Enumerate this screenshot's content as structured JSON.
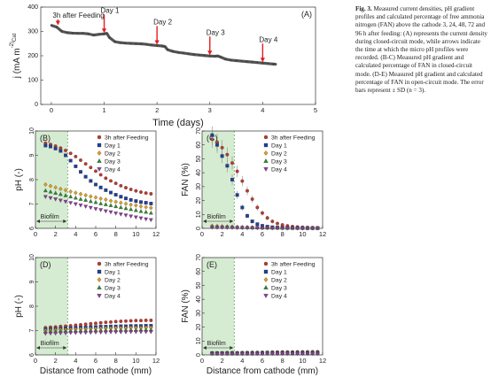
{
  "caption": {
    "label": "Fig. 3.",
    "text": "Measured current densities, pH gradient profiles and calculated percentage of free ammonia nitrogen (FAN) above the cathode 3, 24, 48, 72 and 96 h after feeding: (A) represents the current density during closed-circuit mode, while arrows indicate the time at which the micro pH profiles were recorded. (B-C) Measured pH gradient and calculated percentage of FAN in closed-circuit mode. (D-E) Measured pH gradient and calculated percentage of FAN in open-circuit mode. The error bars represent ± SD (n = 3)."
  },
  "colors": {
    "h3": "#c0392b",
    "d1": "#1f3f9b",
    "d2": "#e0a020",
    "d3": "#2e8b2e",
    "d4": "#8e3a9e",
    "arrow": "#e11d1d",
    "biofilm": "#d6ecd2",
    "trace": "#555555"
  },
  "legend": [
    "3h after Feeding",
    "Day 1",
    "Day 2",
    "Day 3",
    "Day 4"
  ],
  "biofilm_label": "Biofilm",
  "chart_data": [
    {
      "panel": "A",
      "type": "line",
      "xlabel": "Time (days)",
      "ylabel": "j (mA m Cat -2)",
      "xlim": [
        -0.2,
        5
      ],
      "ylim": [
        0,
        400
      ],
      "xticks": [
        0,
        1,
        2,
        3,
        4,
        5
      ],
      "yticks": [
        0,
        100,
        200,
        300,
        400
      ],
      "series": [
        {
          "x": [
            0,
            0.1,
            0.2,
            0.3,
            0.4,
            0.5,
            0.6,
            0.7,
            0.8,
            0.9,
            1.0,
            1.05,
            1.1,
            1.2,
            1.3,
            1.4,
            1.5,
            1.6,
            1.7,
            1.8,
            1.9,
            2.0,
            2.1,
            2.15,
            2.2,
            2.3,
            2.4,
            2.5,
            2.6,
            2.7,
            2.8,
            2.9,
            3.0,
            3.1,
            3.15,
            3.2,
            3.3,
            3.4,
            3.5,
            3.6,
            3.7,
            3.8,
            3.9,
            4.0,
            4.1,
            4.2,
            4.25
          ],
          "values": [
            325,
            318,
            300,
            295,
            293,
            292,
            292,
            290,
            285,
            288,
            290,
            292,
            275,
            258,
            254,
            252,
            251,
            250,
            249,
            247,
            244,
            242,
            240,
            238,
            225,
            218,
            214,
            211,
            208,
            205,
            203,
            201,
            199,
            198,
            199,
            195,
            186,
            182,
            180,
            178,
            176,
            174,
            172,
            170,
            168,
            166,
            165
          ]
        }
      ],
      "annotations": [
        {
          "label": "3h after Feeding",
          "x": 0.125,
          "y": 322
        },
        {
          "label": "Day 1",
          "x": 1.0,
          "y": 290
        },
        {
          "label": "Day 2",
          "x": 2.0,
          "y": 242
        },
        {
          "label": "Day 3",
          "x": 3.0,
          "y": 199
        },
        {
          "label": "Day 4",
          "x": 4.0,
          "y": 170
        }
      ]
    },
    {
      "panel": "B",
      "type": "scatter",
      "xlabel": "",
      "ylabel": "pH (-)",
      "xlim": [
        0,
        12
      ],
      "ylim": [
        6,
        10
      ],
      "xticks": [
        0,
        2,
        4,
        6,
        8,
        10,
        12
      ],
      "yticks": [
        6,
        7,
        8,
        9,
        10
      ],
      "biofilm": [
        0,
        3.2
      ],
      "x": [
        1,
        1.5,
        2,
        2.5,
        3,
        3.5,
        4,
        4.5,
        5,
        5.5,
        6,
        6.5,
        7,
        7.5,
        8,
        8.5,
        9,
        9.5,
        10,
        10.5,
        11,
        11.5
      ],
      "series": [
        {
          "name": "3h after Feeding",
          "values": [
            9.5,
            9.45,
            9.38,
            9.3,
            9.2,
            9.08,
            8.95,
            8.8,
            8.65,
            8.5,
            8.35,
            8.2,
            8.06,
            7.95,
            7.85,
            7.75,
            7.67,
            7.6,
            7.54,
            7.49,
            7.45,
            7.42
          ]
        },
        {
          "name": "Day 1",
          "values": [
            9.4,
            9.36,
            9.28,
            9.18,
            9.0,
            8.78,
            8.55,
            8.32,
            8.12,
            7.95,
            7.8,
            7.68,
            7.57,
            7.47,
            7.38,
            7.3,
            7.23,
            7.17,
            7.12,
            7.08,
            7.05,
            7.02
          ]
        },
        {
          "name": "Day 2",
          "values": [
            7.8,
            7.74,
            7.68,
            7.62,
            7.57,
            7.51,
            7.46,
            7.41,
            7.36,
            7.31,
            7.27,
            7.22,
            7.18,
            7.13,
            7.09,
            7.05,
            7.01,
            6.97,
            6.94,
            6.9,
            6.87,
            6.84
          ]
        },
        {
          "name": "Day 3",
          "values": [
            7.55,
            7.5,
            7.45,
            7.4,
            7.35,
            7.3,
            7.25,
            7.2,
            7.16,
            7.11,
            7.07,
            7.02,
            6.98,
            6.94,
            6.9,
            6.86,
            6.82,
            6.78,
            6.74,
            6.7,
            6.67,
            6.63
          ]
        },
        {
          "name": "Day 4",
          "values": [
            7.3,
            7.25,
            7.2,
            7.15,
            7.1,
            7.05,
            7.0,
            6.95,
            6.9,
            6.85,
            6.8,
            6.76,
            6.71,
            6.67,
            6.62,
            6.58,
            6.54,
            6.5,
            6.46,
            6.42,
            6.38,
            6.35
          ]
        }
      ]
    },
    {
      "panel": "C",
      "type": "scatter",
      "xlabel": "",
      "ylabel": "FAN (%)",
      "xlim": [
        0,
        12
      ],
      "ylim": [
        0,
        70
      ],
      "xticks": [
        0,
        2,
        4,
        6,
        8,
        10,
        12
      ],
      "yticks": [
        0,
        10,
        20,
        30,
        40,
        50,
        60,
        70
      ],
      "biofilm": [
        0,
        3.2
      ],
      "x": [
        1,
        1.5,
        2,
        2.5,
        3,
        3.5,
        4,
        4.5,
        5,
        5.5,
        6,
        6.5,
        7,
        7.5,
        8,
        8.5,
        9,
        9.5,
        10,
        10.5,
        11,
        11.5
      ],
      "series": [
        {
          "name": "3h after Feeding",
          "values": [
            64,
            62,
            58,
            53,
            47,
            41,
            34,
            27,
            21,
            15,
            11,
            7.5,
            5,
            3.5,
            2.5,
            1.8,
            1.3,
            1.0,
            0.8,
            0.6,
            0.5,
            0.4
          ]
        },
        {
          "name": "Day 1",
          "values": [
            67,
            60,
            52,
            45,
            35,
            24,
            15,
            9,
            5,
            3,
            1.8,
            1.2,
            0.8,
            0.6,
            0.5,
            0.4,
            0.3,
            0.3,
            0.2,
            0.2,
            0.2,
            0.2
          ]
        },
        {
          "name": "Day 2",
          "values": [
            1.8,
            1.6,
            1.4,
            1.3,
            1.1,
            1.0,
            0.9,
            0.8,
            0.7,
            0.6,
            0.5,
            0.5,
            0.4,
            0.4,
            0.3,
            0.3,
            0.3,
            0.2,
            0.2,
            0.2,
            0.2,
            0.2
          ]
        },
        {
          "name": "Day 3",
          "values": [
            1.2,
            1.1,
            1.0,
            0.9,
            0.8,
            0.7,
            0.6,
            0.6,
            0.5,
            0.5,
            0.4,
            0.4,
            0.3,
            0.3,
            0.3,
            0.2,
            0.2,
            0.2,
            0.2,
            0.1,
            0.1,
            0.1
          ]
        },
        {
          "name": "Day 4",
          "values": [
            0.7,
            0.6,
            0.6,
            0.5,
            0.5,
            0.4,
            0.4,
            0.3,
            0.3,
            0.3,
            0.2,
            0.2,
            0.2,
            0.2,
            0.1,
            0.1,
            0.1,
            0.1,
            0.1,
            0.1,
            0.1,
            0.1
          ]
        }
      ]
    },
    {
      "panel": "D",
      "type": "scatter",
      "xlabel": "Distance from cathode (mm)",
      "ylabel": "pH (-)",
      "xlim": [
        0,
        12
      ],
      "ylim": [
        6,
        10
      ],
      "xticks": [
        0,
        2,
        4,
        6,
        8,
        10,
        12
      ],
      "yticks": [
        6,
        7,
        8,
        9,
        10
      ],
      "biofilm": [
        0,
        3.2
      ],
      "x": [
        1,
        1.5,
        2,
        2.5,
        3,
        3.5,
        4,
        4.5,
        5,
        5.5,
        6,
        6.5,
        7,
        7.5,
        8,
        8.5,
        9,
        9.5,
        10,
        10.5,
        11,
        11.5
      ],
      "series": [
        {
          "name": "3h after Feeding",
          "values": [
            7.12,
            7.14,
            7.15,
            7.17,
            7.18,
            7.2,
            7.22,
            7.24,
            7.26,
            7.28,
            7.3,
            7.32,
            7.34,
            7.35,
            7.37,
            7.38,
            7.39,
            7.4,
            7.41,
            7.41,
            7.42,
            7.42
          ]
        },
        {
          "name": "Day 1",
          "values": [
            7.05,
            7.06,
            7.07,
            7.08,
            7.09,
            7.1,
            7.11,
            7.12,
            7.13,
            7.14,
            7.15,
            7.16,
            7.16,
            7.17,
            7.17,
            7.18,
            7.18,
            7.19,
            7.19,
            7.19,
            7.2,
            7.2
          ]
        },
        {
          "name": "Day 2",
          "values": [
            7.0,
            7.01,
            7.02,
            7.03,
            7.03,
            7.04,
            7.05,
            7.06,
            7.06,
            7.07,
            7.08,
            7.08,
            7.09,
            7.09,
            7.1,
            7.1,
            7.1,
            7.11,
            7.11,
            7.11,
            7.12,
            7.12
          ]
        },
        {
          "name": "Day 3",
          "values": [
            6.95,
            6.96,
            6.96,
            6.97,
            6.97,
            6.98,
            6.98,
            6.99,
            6.99,
            7.0,
            7.0,
            7.0,
            7.01,
            7.01,
            7.01,
            7.02,
            7.02,
            7.02,
            7.02,
            7.03,
            7.03,
            7.03
          ]
        },
        {
          "name": "Day 4",
          "values": [
            6.88,
            6.89,
            6.89,
            6.9,
            6.9,
            6.91,
            6.91,
            6.92,
            6.92,
            6.92,
            6.93,
            6.93,
            6.93,
            6.94,
            6.94,
            6.94,
            6.94,
            6.95,
            6.95,
            6.95,
            6.95,
            6.95
          ]
        }
      ]
    },
    {
      "panel": "E",
      "type": "scatter",
      "xlabel": "Distance from cathode (mm)",
      "ylabel": "FAN (%)",
      "xlim": [
        0,
        12
      ],
      "ylim": [
        0,
        70
      ],
      "xticks": [
        0,
        2,
        4,
        6,
        8,
        10,
        12
      ],
      "yticks": [
        0,
        10,
        20,
        30,
        40,
        50,
        60,
        70
      ],
      "biofilm": [
        0,
        3.2
      ],
      "x": [
        1,
        1.5,
        2,
        2.5,
        3,
        3.5,
        4,
        4.5,
        5,
        5.5,
        6,
        6.5,
        7,
        7.5,
        8,
        8.5,
        9,
        9.5,
        10,
        10.5,
        11,
        11.5
      ],
      "series": [
        {
          "name": "3h after Feeding",
          "values": [
            1.5,
            1.5,
            1.5,
            1.6,
            1.6,
            1.6,
            1.7,
            1.7,
            1.8,
            1.8,
            1.9,
            1.9,
            2.0,
            2.0,
            2.1,
            2.1,
            2.1,
            2.2,
            2.2,
            2.2,
            2.3,
            2.3
          ]
        },
        {
          "name": "Day 1",
          "values": [
            1.2,
            1.2,
            1.2,
            1.3,
            1.3,
            1.3,
            1.3,
            1.4,
            1.4,
            1.4,
            1.4,
            1.5,
            1.5,
            1.5,
            1.5,
            1.5,
            1.6,
            1.6,
            1.6,
            1.6,
            1.6,
            1.6
          ]
        },
        {
          "name": "Day 2",
          "values": [
            1.0,
            1.0,
            1.0,
            1.0,
            1.1,
            1.1,
            1.1,
            1.1,
            1.1,
            1.2,
            1.2,
            1.2,
            1.2,
            1.2,
            1.2,
            1.3,
            1.3,
            1.3,
            1.3,
            1.3,
            1.3,
            1.3
          ]
        },
        {
          "name": "Day 3",
          "values": [
            0.9,
            0.9,
            0.9,
            0.9,
            0.9,
            0.9,
            1.0,
            1.0,
            1.0,
            1.0,
            1.0,
            1.0,
            1.0,
            1.0,
            1.1,
            1.1,
            1.1,
            1.1,
            1.1,
            1.1,
            1.1,
            1.1
          ]
        },
        {
          "name": "Day 4",
          "values": [
            0.8,
            0.8,
            0.8,
            0.8,
            0.8,
            0.8,
            0.8,
            0.8,
            0.8,
            0.8,
            0.9,
            0.9,
            0.9,
            0.9,
            0.9,
            0.9,
            0.9,
            0.9,
            0.9,
            0.9,
            0.9,
            0.9
          ]
        }
      ]
    }
  ]
}
